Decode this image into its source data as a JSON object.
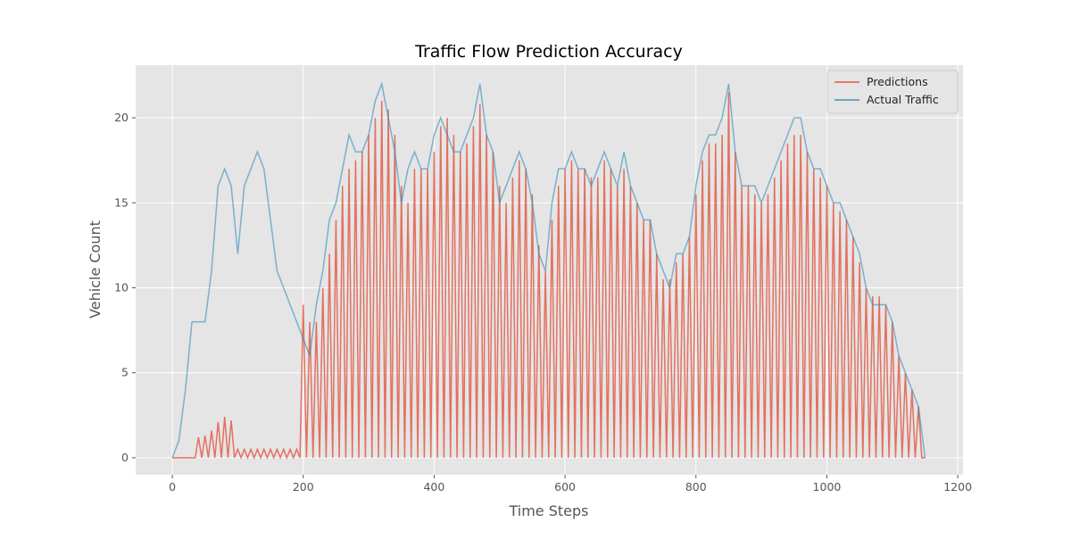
{
  "chart_data": {
    "type": "line",
    "title": "Traffic Flow Prediction Accuracy",
    "x_label": "Time Steps",
    "y_label": "Vehicle Count",
    "xlim": [
      -56,
      1208
    ],
    "ylim": [
      -1.0,
      23.1
    ],
    "xticks": [
      0,
      200,
      400,
      600,
      800,
      1000,
      1200
    ],
    "yticks": [
      0,
      5,
      10,
      15,
      20
    ],
    "grid": true,
    "legend": "upper right",
    "series": [
      {
        "name": "Predictions",
        "color": "#E24A33",
        "x": [
          0,
          5,
          10,
          15,
          20,
          25,
          30,
          35,
          40,
          45,
          50,
          55,
          60,
          65,
          70,
          75,
          80,
          85,
          90,
          95,
          100,
          105,
          110,
          115,
          120,
          125,
          130,
          135,
          140,
          145,
          150,
          155,
          160,
          165,
          170,
          175,
          180,
          185,
          190,
          195,
          200,
          205,
          210,
          215,
          220,
          225,
          230,
          235,
          240,
          245,
          250,
          255,
          260,
          265,
          270,
          275,
          280,
          285,
          290,
          295,
          300,
          305,
          310,
          315,
          320,
          325,
          330,
          335,
          340,
          345,
          350,
          355,
          360,
          365,
          370,
          375,
          380,
          385,
          390,
          395,
          400,
          405,
          410,
          415,
          420,
          425,
          430,
          435,
          440,
          445,
          450,
          455,
          460,
          465,
          470,
          475,
          480,
          485,
          490,
          495,
          500,
          505,
          510,
          515,
          520,
          525,
          530,
          535,
          540,
          545,
          550,
          555,
          560,
          565,
          570,
          575,
          580,
          585,
          590,
          595,
          600,
          605,
          610,
          615,
          620,
          625,
          630,
          635,
          640,
          645,
          650,
          655,
          660,
          665,
          670,
          675,
          680,
          685,
          690,
          695,
          700,
          705,
          710,
          715,
          720,
          725,
          730,
          735,
          740,
          745,
          750,
          755,
          760,
          765,
          770,
          775,
          780,
          785,
          790,
          795,
          800,
          805,
          810,
          815,
          820,
          825,
          830,
          835,
          840,
          845,
          850,
          855,
          860,
          865,
          870,
          875,
          880,
          885,
          890,
          895,
          900,
          905,
          910,
          915,
          920,
          925,
          930,
          935,
          940,
          945,
          950,
          955,
          960,
          965,
          970,
          975,
          980,
          985,
          990,
          995,
          1000,
          1005,
          1010,
          1015,
          1020,
          1025,
          1030,
          1035,
          1040,
          1045,
          1050,
          1055,
          1060,
          1065,
          1070,
          1075,
          1080,
          1085,
          1090,
          1095,
          1100,
          1105,
          1110,
          1115,
          1120,
          1125,
          1130,
          1135,
          1140,
          1145,
          1150
        ],
        "values": [
          0,
          0,
          0,
          0,
          0,
          0,
          0,
          0,
          1.2,
          0,
          1.3,
          0,
          1.6,
          0,
          2.1,
          0,
          2.4,
          0,
          2.2,
          0,
          0.5,
          0,
          0.5,
          0,
          0.5,
          0,
          0.5,
          0,
          0.5,
          0,
          0.5,
          0,
          0.5,
          0,
          0.5,
          0,
          0.5,
          0,
          0.5,
          0,
          9,
          0,
          8,
          0,
          8,
          0,
          10,
          0,
          12,
          0,
          14,
          0,
          16,
          0,
          17,
          0,
          17.5,
          0,
          18,
          0,
          19,
          0,
          20,
          0,
          21,
          0,
          20.5,
          0,
          19,
          0,
          16,
          0,
          15,
          0,
          17,
          0,
          17,
          0,
          17,
          0,
          18,
          0,
          19.5,
          0,
          20,
          0,
          19,
          0,
          18,
          0,
          18.5,
          0,
          19.5,
          0,
          20.8,
          0,
          19,
          0,
          18,
          0,
          16,
          0,
          15,
          0,
          16.5,
          0,
          17.5,
          0,
          17,
          0,
          15.5,
          0,
          12.5,
          0,
          11,
          0,
          14,
          0,
          16,
          0,
          17,
          0,
          17.5,
          0,
          17,
          0,
          17,
          0,
          16.5,
          0,
          16.5,
          0,
          17.5,
          0,
          17,
          0,
          16,
          0,
          17,
          0,
          16,
          0,
          15,
          0,
          14,
          0,
          14,
          0,
          12,
          0,
          10.5,
          0,
          10.5,
          0,
          11.5,
          0,
          12,
          0,
          13,
          0,
          15.5,
          0,
          17.5,
          0,
          18.5,
          0,
          18.5,
          0,
          19,
          0,
          21.5,
          0,
          18,
          0,
          16,
          0,
          16,
          0,
          15.5,
          0,
          15,
          0,
          15.5,
          0,
          16.5,
          0,
          17.5,
          0,
          18.5,
          0,
          19,
          0,
          19,
          0,
          18,
          0,
          17,
          0,
          16.5,
          0,
          16,
          0,
          15,
          0,
          14.5,
          0,
          14,
          0,
          13,
          0,
          11.5,
          0,
          10,
          0,
          9.5,
          0,
          9.5,
          0,
          9,
          0,
          8,
          0,
          6,
          0,
          5,
          0,
          4,
          0,
          3,
          0,
          0
        ]
      },
      {
        "name": "Actual Traffic",
        "color": "#348ABD",
        "x": [
          0,
          10,
          20,
          30,
          40,
          50,
          60,
          70,
          80,
          90,
          100,
          110,
          120,
          130,
          140,
          150,
          160,
          170,
          180,
          190,
          200,
          210,
          220,
          230,
          240,
          250,
          260,
          270,
          280,
          290,
          300,
          310,
          320,
          330,
          340,
          350,
          360,
          370,
          380,
          390,
          400,
          410,
          420,
          430,
          440,
          450,
          460,
          470,
          480,
          490,
          500,
          510,
          520,
          530,
          540,
          550,
          560,
          570,
          580,
          590,
          600,
          610,
          620,
          630,
          640,
          650,
          660,
          670,
          680,
          690,
          700,
          710,
          720,
          730,
          740,
          750,
          760,
          770,
          780,
          790,
          800,
          810,
          820,
          830,
          840,
          850,
          860,
          870,
          880,
          890,
          900,
          910,
          920,
          930,
          940,
          950,
          960,
          970,
          980,
          990,
          1000,
          1010,
          1020,
          1030,
          1040,
          1050,
          1060,
          1070,
          1080,
          1090,
          1100,
          1110,
          1120,
          1130,
          1140,
          1150
        ],
        "values": [
          0,
          1,
          4,
          8,
          8,
          8,
          11,
          16,
          17,
          16,
          12,
          16,
          17,
          18,
          17,
          14,
          11,
          10,
          9,
          8,
          7,
          6,
          9,
          11,
          14,
          15,
          17,
          19,
          18,
          18,
          19,
          21,
          22,
          20,
          18,
          15,
          17,
          18,
          17,
          17,
          19,
          20,
          19,
          18,
          18,
          19,
          20,
          22,
          19,
          18,
          15,
          16,
          17,
          18,
          17,
          15,
          12,
          11,
          15,
          17,
          17,
          18,
          17,
          17,
          16,
          17,
          18,
          17,
          16,
          18,
          16,
          15,
          14,
          14,
          12,
          11,
          10,
          12,
          12,
          13,
          16,
          18,
          19,
          19,
          20,
          22,
          18,
          16,
          16,
          16,
          15,
          16,
          17,
          18,
          19,
          20,
          20,
          18,
          17,
          17,
          16,
          15,
          15,
          14,
          13,
          12,
          10,
          9,
          9,
          9,
          8,
          6,
          5,
          4,
          3,
          0
        ]
      }
    ]
  }
}
